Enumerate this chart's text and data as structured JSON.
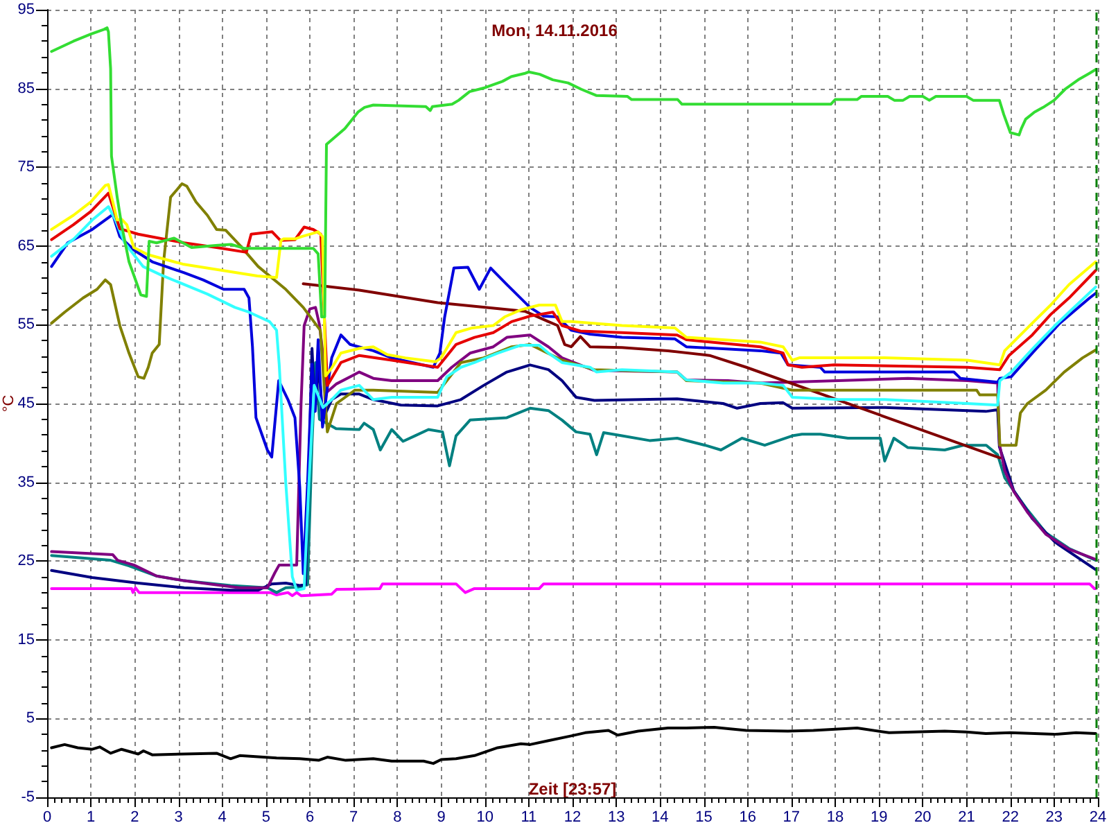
{
  "chart_data": {
    "type": "line",
    "title": "Mon, 14.11.2016",
    "xlabel": "Zeit [23:57]",
    "ylabel": "°C",
    "xlim": [
      0,
      24
    ],
    "ylim": [
      -5,
      95
    ],
    "xticks": [
      0,
      1,
      2,
      3,
      4,
      5,
      6,
      7,
      8,
      9,
      10,
      11,
      12,
      13,
      14,
      15,
      16,
      17,
      18,
      19,
      20,
      21,
      22,
      23,
      24,
      {
        "value": 0.1667,
        "label": null
      },
      {
        "value": 0.3333,
        "label": null
      },
      {
        "value": 0.5,
        "label": null
      },
      {
        "value": 0.6667,
        "label": null
      },
      {
        "value": 0.8333,
        "label": null
      },
      {
        "value": 1.1667,
        "label": null
      },
      {
        "value": 1.3333,
        "label": null
      },
      {
        "value": 1.5,
        "label": null
      },
      {
        "value": 1.6667,
        "label": null
      },
      {
        "value": 1.8333,
        "label": null
      },
      {
        "value": 2.1667,
        "label": null
      },
      {
        "value": 2.3333,
        "label": null
      },
      {
        "value": 2.5,
        "label": null
      },
      {
        "value": 2.6667,
        "label": null
      },
      {
        "value": 2.8333,
        "label": null
      },
      {
        "value": 3.1667,
        "label": null
      },
      {
        "value": 3.3333,
        "label": null
      },
      {
        "value": 3.5,
        "label": null
      },
      {
        "value": 3.6667,
        "label": null
      },
      {
        "value": 3.8333,
        "label": null
      },
      {
        "value": 4.1667,
        "label": null
      },
      {
        "value": 4.3333,
        "label": null
      },
      {
        "value": 4.5,
        "label": null
      },
      {
        "value": 4.6667,
        "label": null
      },
      {
        "value": 4.8333,
        "label": null
      },
      {
        "value": 5.1667,
        "label": null
      },
      {
        "value": 5.3333,
        "label": null
      },
      {
        "value": 5.5,
        "label": null
      },
      {
        "value": 5.6667,
        "label": null
      },
      {
        "value": 5.8333,
        "label": null
      },
      {
        "value": 6.1667,
        "label": null
      },
      {
        "value": 6.3333,
        "label": null
      },
      {
        "value": 6.5,
        "label": null
      },
      {
        "value": 6.6667,
        "label": null
      },
      {
        "value": 6.8333,
        "label": null
      },
      {
        "value": 7.1667,
        "label": null
      },
      {
        "value": 7.3333,
        "label": null
      },
      {
        "value": 7.5,
        "label": null
      },
      {
        "value": 7.6667,
        "label": null
      },
      {
        "value": 7.8333,
        "label": null
      },
      {
        "value": 8.1667,
        "label": null
      },
      {
        "value": 8.3333,
        "label": null
      },
      {
        "value": 8.5,
        "label": null
      },
      {
        "value": 8.6667,
        "label": null
      },
      {
        "value": 8.8333,
        "label": null
      },
      {
        "value": 9.1667,
        "label": null
      },
      {
        "value": 9.3333,
        "label": null
      },
      {
        "value": 9.5,
        "label": null
      },
      {
        "value": 9.6667,
        "label": null
      },
      {
        "value": 9.8333,
        "label": null
      },
      {
        "value": 10.1667,
        "label": null
      },
      {
        "value": 10.3333,
        "label": null
      },
      {
        "value": 10.5,
        "label": null
      },
      {
        "value": 10.6667,
        "label": null
      },
      {
        "value": 10.8333,
        "label": null
      },
      {
        "value": 11.1667,
        "label": null
      },
      {
        "value": 11.3333,
        "label": null
      },
      {
        "value": 11.5,
        "label": null
      },
      {
        "value": 11.6667,
        "label": null
      },
      {
        "value": 11.8333,
        "label": null
      },
      {
        "value": 12.1667,
        "label": null
      },
      {
        "value": 12.3333,
        "label": null
      },
      {
        "value": 12.5,
        "label": null
      },
      {
        "value": 12.6667,
        "label": null
      },
      {
        "value": 12.8333,
        "label": null
      },
      {
        "value": 13.1667,
        "label": null
      },
      {
        "value": 13.3333,
        "label": null
      },
      {
        "value": 13.5,
        "label": null
      },
      {
        "value": 13.6667,
        "label": null
      },
      {
        "value": 13.8333,
        "label": null
      },
      {
        "value": 14.1667,
        "label": null
      },
      {
        "value": 14.3333,
        "label": null
      },
      {
        "value": 14.5,
        "label": null
      },
      {
        "value": 14.6667,
        "label": null
      },
      {
        "value": 14.8333,
        "label": null
      },
      {
        "value": 15.1667,
        "label": null
      },
      {
        "value": 15.3333,
        "label": null
      },
      {
        "value": 15.5,
        "label": null
      },
      {
        "value": 15.6667,
        "label": null
      },
      {
        "value": 15.8333,
        "label": null
      },
      {
        "value": 16.1667,
        "label": null
      },
      {
        "value": 16.3333,
        "label": null
      },
      {
        "value": 16.5,
        "label": null
      },
      {
        "value": 16.6667,
        "label": null
      },
      {
        "value": 16.8333,
        "label": null
      },
      {
        "value": 17.1667,
        "label": null
      },
      {
        "value": 17.3333,
        "label": null
      },
      {
        "value": 17.5,
        "label": null
      },
      {
        "value": 17.6667,
        "label": null
      },
      {
        "value": 17.8333,
        "label": null
      },
      {
        "value": 18.1667,
        "label": null
      },
      {
        "value": 18.3333,
        "label": null
      },
      {
        "value": 18.5,
        "label": null
      },
      {
        "value": 18.6667,
        "label": null
      },
      {
        "value": 18.8333,
        "label": null
      },
      {
        "value": 19.1667,
        "label": null
      },
      {
        "value": 19.3333,
        "label": null
      },
      {
        "value": 19.5,
        "label": null
      },
      {
        "value": 19.6667,
        "label": null
      },
      {
        "value": 19.8333,
        "label": null
      },
      {
        "value": 20.1667,
        "label": null
      },
      {
        "value": 20.3333,
        "label": null
      },
      {
        "value": 20.5,
        "label": null
      },
      {
        "value": 20.6667,
        "label": null
      },
      {
        "value": 20.8333,
        "label": null
      },
      {
        "value": 21.1667,
        "label": null
      },
      {
        "value": 21.3333,
        "label": null
      },
      {
        "value": 21.5,
        "label": null
      },
      {
        "value": 21.6667,
        "label": null
      },
      {
        "value": 21.8333,
        "label": null
      },
      {
        "value": 22.1667,
        "label": null
      },
      {
        "value": 22.3333,
        "label": null
      },
      {
        "value": 22.5,
        "label": null
      },
      {
        "value": 22.6667,
        "label": null
      },
      {
        "value": 22.8333,
        "label": null
      },
      {
        "value": 23.1667,
        "label": null
      },
      {
        "value": 23.3333,
        "label": null
      },
      {
        "value": 23.5,
        "label": null
      },
      {
        "value": 23.6667,
        "label": null
      },
      {
        "value": 23.8333,
        "label": null
      }
    ],
    "yticks": [
      -5,
      5,
      15,
      25,
      35,
      45,
      55,
      65,
      75,
      85,
      95,
      {
        "value": -3,
        "label": null
      },
      {
        "value": -1,
        "label": null
      },
      {
        "value": 1,
        "label": null
      },
      {
        "value": 3,
        "label": null
      },
      {
        "value": 7,
        "label": null
      },
      {
        "value": 9,
        "label": null
      },
      {
        "value": 11,
        "label": null
      },
      {
        "value": 13,
        "label": null
      },
      {
        "value": 17,
        "label": null
      },
      {
        "value": 19,
        "label": null
      },
      {
        "value": 21,
        "label": null
      },
      {
        "value": 23,
        "label": null
      },
      {
        "value": 27,
        "label": null
      },
      {
        "value": 29,
        "label": null
      },
      {
        "value": 31,
        "label": null
      },
      {
        "value": 33,
        "label": null
      },
      {
        "value": 37,
        "label": null
      },
      {
        "value": 39,
        "label": null
      },
      {
        "value": 41,
        "label": null
      },
      {
        "value": 43,
        "label": null
      },
      {
        "value": 47,
        "label": null
      },
      {
        "value": 49,
        "label": null
      },
      {
        "value": 51,
        "label": null
      },
      {
        "value": 53,
        "label": null
      },
      {
        "value": 57,
        "label": null
      },
      {
        "value": 59,
        "label": null
      },
      {
        "value": 61,
        "label": null
      },
      {
        "value": 63,
        "label": null
      },
      {
        "value": 67,
        "label": null
      },
      {
        "value": 69,
        "label": null
      },
      {
        "value": 71,
        "label": null
      },
      {
        "value": 73,
        "label": null
      },
      {
        "value": 77,
        "label": null
      },
      {
        "value": 79,
        "label": null
      },
      {
        "value": 81,
        "label": null
      },
      {
        "value": 83,
        "label": null
      },
      {
        "value": 87,
        "label": null
      },
      {
        "value": 89,
        "label": null
      },
      {
        "value": 91,
        "label": null
      },
      {
        "value": 93,
        "label": null
      }
    ],
    "grid": true,
    "marker": "none",
    "line_style": "solid",
    "ref_lines": [
      {
        "axis": "x",
        "value": 23.95,
        "color": "#008000",
        "line_style": "dashed"
      }
    ],
    "series": [
      {
        "color": "#000000",
        "x": [
          0.1,
          0.4,
          0.7,
          1.03,
          1.2,
          1.45,
          1.7,
          2.08,
          2.2,
          2.4,
          3.13,
          3.87,
          4.19,
          4.4,
          5.24,
          5.77,
          6.2,
          6.4,
          6.82,
          7.45,
          7.87,
          8.6,
          8.82,
          9.0,
          9.34,
          9.76,
          10.29,
          10.82,
          11.03,
          11.45,
          11.97,
          12.29,
          12.82,
          13.03,
          13.5,
          14.18,
          14.6,
          15.24,
          15.6,
          15.97,
          16.92,
          17.5,
          18.5,
          19.23,
          20.5,
          21.0,
          21.44,
          22.0,
          23.0,
          23.5,
          23.95
        ],
        "values": [
          1.3,
          1.7,
          1.3,
          1.1,
          1.4,
          0.6,
          1.1,
          0.5,
          0.9,
          0.4,
          0.5,
          0.6,
          -0.1,
          0.3,
          0.0,
          -0.1,
          -0.3,
          0.1,
          -0.3,
          -0.1,
          -0.4,
          -0.4,
          -0.7,
          -0.2,
          -0.1,
          0.3,
          1.3,
          1.8,
          1.7,
          2.2,
          2.8,
          3.2,
          3.5,
          2.9,
          3.4,
          3.8,
          3.8,
          3.9,
          3.7,
          3.5,
          3.4,
          3.5,
          3.8,
          3.2,
          3.4,
          3.3,
          3.1,
          3.2,
          3.0,
          3.2,
          3.1
        ]
      },
      {
        "color": "#ff00ff",
        "x": [
          0.1,
          1.93,
          1.96,
          2.02,
          2.1,
          5.1,
          5.24,
          5.5,
          5.6,
          5.7,
          5.8,
          6.5,
          6.61,
          7.6,
          7.66,
          9.34,
          9.55,
          9.76,
          11.24,
          11.34,
          23.81,
          23.92,
          23.95
        ],
        "values": [
          21.5,
          21.5,
          21.0,
          21.6,
          21.0,
          21.0,
          20.7,
          21.0,
          20.6,
          21.0,
          20.6,
          20.8,
          21.4,
          21.5,
          22.1,
          22.1,
          21.0,
          21.5,
          21.5,
          22.1,
          22.1,
          21.5,
          21.5
        ]
      },
      {
        "color": "#008080",
        "x": [
          0.1,
          1.45,
          1.87,
          2.5,
          3.13,
          4.19,
          5.03,
          5.24,
          5.45,
          5.77,
          5.95,
          6.05,
          6.13,
          6.22,
          6.35,
          6.6,
          7.13,
          7.24,
          7.45,
          7.61,
          7.87,
          8.13,
          8.4,
          8.71,
          9.03,
          9.19,
          9.34,
          9.66,
          10.5,
          11.03,
          11.45,
          11.76,
          12.08,
          12.4,
          12.55,
          12.71,
          13.13,
          13.76,
          14.39,
          15.03,
          15.39,
          15.87,
          16.39,
          17.02,
          17.24,
          17.66,
          18.29,
          19.03,
          19.13,
          19.34,
          19.66,
          20.5,
          20.92,
          21.45,
          21.71,
          21.87,
          22.08,
          22.39,
          22.81,
          23.34,
          23.95
        ],
        "values": [
          25.7,
          25.1,
          24.4,
          23.1,
          22.5,
          21.9,
          21.6,
          21.0,
          21.6,
          21.7,
          22.0,
          40.0,
          50.2,
          43.0,
          42.6,
          41.8,
          41.7,
          42.5,
          41.7,
          39.1,
          41.7,
          40.2,
          40.9,
          41.7,
          41.4,
          37.1,
          40.9,
          42.9,
          43.2,
          44.4,
          44.1,
          42.9,
          41.4,
          41.1,
          38.5,
          41.3,
          40.9,
          40.3,
          40.6,
          39.7,
          39.1,
          40.6,
          39.7,
          40.9,
          41.1,
          41.1,
          40.6,
          40.6,
          37.7,
          40.6,
          39.4,
          39.1,
          39.7,
          39.7,
          38.5,
          35.6,
          33.9,
          31.5,
          28.6,
          26.6,
          25.1
        ]
      },
      {
        "color": "#000080",
        "x": [
          0.1,
          1.03,
          2.08,
          3.13,
          4.19,
          4.82,
          5.13,
          5.45,
          5.77,
          5.9,
          5.97,
          6.05,
          6.12,
          6.2,
          6.3,
          6.5,
          6.71,
          7.13,
          7.45,
          8.08,
          8.92,
          9.45,
          9.97,
          10.5,
          11.03,
          11.45,
          11.76,
          12.08,
          12.5,
          14.39,
          15.44,
          15.76,
          16.29,
          16.81,
          17.02,
          19.13,
          21.44,
          21.71,
          21.75,
          22.08,
          22.5,
          23.02,
          23.55,
          23.95
        ],
        "values": [
          23.8,
          22.9,
          22.2,
          21.6,
          21.3,
          21.3,
          22.1,
          22.2,
          21.9,
          22.0,
          35.0,
          52.0,
          44.0,
          50.0,
          43.0,
          45.5,
          46.2,
          46.2,
          45.5,
          44.8,
          44.7,
          45.5,
          47.3,
          49.0,
          49.9,
          49.3,
          47.9,
          45.8,
          45.4,
          45.6,
          45.0,
          44.4,
          45.0,
          45.1,
          44.4,
          44.5,
          44.0,
          44.2,
          39.5,
          33.9,
          30.4,
          27.4,
          25.4,
          23.9
        ]
      },
      {
        "color": "#800080",
        "x": [
          0.1,
          1.5,
          1.61,
          1.98,
          2.5,
          3.13,
          3.98,
          4.4,
          5.03,
          5.2,
          5.3,
          5.7,
          5.8,
          5.87,
          6.0,
          6.13,
          6.22,
          6.4,
          6.61,
          7.13,
          7.45,
          7.87,
          8.92,
          9.24,
          9.66,
          10.19,
          10.5,
          11.03,
          11.45,
          11.76,
          12.5,
          14.39,
          14.6,
          15.55,
          16.29,
          18.07,
          19.66,
          21.02,
          21.71,
          21.75,
          21.87,
          22.08,
          22.39,
          22.81,
          23.34,
          23.95
        ],
        "values": [
          26.2,
          25.8,
          25.1,
          24.5,
          23.1,
          22.5,
          21.9,
          21.6,
          21.6,
          23.5,
          24.5,
          24.5,
          45.0,
          54.9,
          57.0,
          57.2,
          55.0,
          46.5,
          47.5,
          49.0,
          48.2,
          47.9,
          47.9,
          49.6,
          51.4,
          52.2,
          53.4,
          53.7,
          52.2,
          50.8,
          49.2,
          49.0,
          48.0,
          47.9,
          47.6,
          47.9,
          48.2,
          47.9,
          47.6,
          39.9,
          36.5,
          33.8,
          31.2,
          28.4,
          26.5,
          25.2
        ]
      },
      {
        "color": "#800000",
        "x": [
          5.85,
          7.13,
          8.92,
          10.92,
          11.45,
          11.66,
          11.82,
          11.97,
          12.18,
          12.4,
          13.13,
          14.18,
          15.13,
          15.97,
          21.76
        ],
        "values": [
          60.2,
          59.4,
          57.8,
          56.7,
          55.4,
          54.9,
          52.5,
          52.2,
          53.5,
          52.2,
          52.1,
          51.7,
          51.1,
          49.6,
          38.1
        ]
      },
      {
        "color": "#808000",
        "x": [
          0.1,
          0.4,
          0.82,
          1.14,
          1.33,
          1.45,
          1.66,
          1.87,
          2.08,
          2.21,
          2.31,
          2.4,
          2.56,
          2.66,
          2.82,
          3.08,
          3.19,
          3.4,
          3.66,
          3.87,
          4.08,
          4.4,
          4.82,
          5.45,
          5.85,
          6.24,
          6.4,
          6.61,
          7.03,
          7.45,
          8.92,
          9.45,
          9.97,
          10.61,
          11.03,
          11.76,
          12.5,
          14.39,
          14.6,
          16.29,
          17.02,
          21.23,
          21.3,
          21.71,
          21.76,
          22.13,
          22.23,
          22.39,
          22.81,
          23.23,
          23.65,
          23.95
        ],
        "values": [
          55.2,
          56.6,
          58.4,
          59.5,
          60.7,
          60.1,
          54.9,
          51.4,
          48.4,
          48.2,
          49.6,
          51.4,
          52.5,
          63.0,
          71.2,
          72.9,
          72.6,
          70.6,
          68.9,
          67.1,
          67.0,
          65.1,
          62.4,
          59.5,
          57.2,
          54.3,
          41.4,
          45.0,
          46.7,
          46.7,
          46.4,
          50.2,
          50.8,
          52.2,
          52.5,
          50.5,
          49.3,
          49.0,
          47.9,
          47.6,
          46.7,
          46.7,
          46.1,
          46.1,
          39.7,
          39.7,
          43.8,
          45.0,
          46.7,
          49.0,
          50.8,
          51.8
        ]
      },
      {
        "color": "#0000dd",
        "x": [
          0.1,
          0.47,
          1.03,
          1.5,
          1.66,
          1.98,
          2.4,
          3.13,
          3.56,
          4.03,
          4.5,
          4.61,
          4.69,
          4.77,
          5.03,
          5.13,
          5.29,
          5.5,
          5.66,
          5.77,
          5.85,
          5.95,
          6.05,
          6.12,
          6.19,
          6.29,
          6.4,
          6.5,
          6.71,
          6.92,
          7.45,
          7.87,
          8.82,
          8.97,
          9.08,
          9.29,
          9.61,
          9.87,
          10.13,
          10.5,
          11.03,
          11.34,
          11.66,
          11.97,
          12.4,
          13.13,
          14.34,
          14.6,
          16.29,
          16.76,
          16.92,
          17.66,
          17.76,
          20.71,
          20.86,
          21.71,
          21.76,
          22.02,
          22.5,
          23.13,
          23.81,
          23.95
        ],
        "values": [
          62.4,
          65.4,
          67.1,
          69.0,
          66.2,
          64.5,
          63.0,
          61.6,
          60.7,
          59.5,
          59.5,
          58.4,
          52.2,
          43.2,
          39.1,
          38.2,
          47.9,
          45.5,
          43.2,
          34.4,
          23.4,
          35.0,
          50.0,
          44.0,
          53.1,
          42.0,
          47.0,
          50.8,
          53.7,
          52.5,
          51.7,
          50.8,
          49.6,
          51.4,
          56.0,
          62.2,
          62.3,
          59.5,
          62.2,
          60.1,
          57.2,
          56.1,
          56.0,
          54.3,
          53.8,
          53.4,
          53.2,
          52.2,
          51.7,
          51.4,
          49.9,
          49.6,
          49.0,
          49.0,
          48.2,
          47.7,
          48.2,
          48.4,
          51.4,
          55.2,
          58.4,
          59.0
        ]
      },
      {
        "color": "#33ffff",
        "x": [
          0.1,
          0.61,
          1.03,
          1.4,
          1.56,
          1.77,
          2.19,
          2.61,
          3.66,
          4.29,
          4.61,
          5.08,
          5.24,
          5.3,
          5.45,
          5.6,
          5.7,
          5.87,
          5.98,
          6.1,
          6.3,
          6.5,
          6.71,
          7.13,
          7.45,
          7.87,
          8.92,
          9.13,
          9.45,
          9.76,
          10.29,
          10.82,
          11.24,
          11.45,
          11.76,
          12.4,
          12.55,
          13.13,
          14.39,
          14.6,
          15.44,
          16.29,
          16.81,
          17.02,
          18.07,
          19.13,
          21.02,
          21.71,
          21.76,
          22.02,
          22.5,
          23.02,
          23.34,
          23.95
        ],
        "values": [
          63.7,
          65.9,
          68.3,
          70.0,
          68.3,
          65.4,
          62.4,
          61.3,
          58.9,
          57.2,
          56.6,
          55.4,
          54.3,
          50.0,
          35.0,
          23.0,
          21.3,
          21.5,
          35.0,
          47.3,
          44.5,
          45.5,
          46.7,
          47.3,
          45.5,
          45.8,
          45.8,
          48.4,
          49.6,
          50.2,
          51.4,
          52.4,
          52.4,
          51.4,
          50.2,
          49.6,
          49.0,
          49.3,
          49.0,
          48.0,
          47.6,
          47.6,
          47.3,
          45.8,
          45.5,
          45.5,
          45.0,
          44.8,
          47.9,
          49.0,
          51.9,
          54.9,
          56.6,
          59.8
        ]
      },
      {
        "color": "#e60000",
        "x": [
          0.1,
          0.6,
          1.0,
          1.4,
          1.66,
          2.08,
          3.13,
          3.87,
          4.55,
          4.66,
          5.14,
          5.33,
          5.66,
          5.87,
          6.08,
          6.25,
          6.4,
          6.71,
          7.13,
          7.87,
          8.92,
          9.34,
          9.76,
          10.19,
          10.61,
          11.03,
          11.55,
          11.76,
          12.18,
          13.13,
          14.39,
          14.6,
          16.29,
          16.81,
          16.92,
          17.24,
          17.97,
          21.02,
          21.76,
          21.97,
          22.5,
          22.92,
          23.34,
          23.95
        ],
        "values": [
          65.8,
          67.7,
          69.4,
          71.7,
          67.2,
          66.5,
          65.4,
          64.8,
          64.2,
          66.5,
          66.8,
          65.7,
          65.8,
          67.4,
          67.1,
          66.5,
          47.3,
          50.2,
          51.1,
          50.5,
          49.6,
          52.5,
          53.4,
          54.0,
          55.4,
          56.1,
          56.6,
          54.9,
          54.2,
          54.0,
          53.7,
          53.1,
          52.2,
          51.4,
          49.9,
          49.6,
          49.9,
          49.6,
          49.3,
          51.1,
          53.7,
          56.3,
          58.4,
          61.9
        ]
      },
      {
        "color": "#ffff00",
        "x": [
          0.1,
          0.6,
          1.0,
          1.33,
          1.4,
          1.5,
          1.6,
          1.7,
          1.82,
          1.98,
          2.3,
          3.1,
          4.0,
          4.8,
          5.24,
          5.34,
          5.4,
          5.66,
          5.82,
          6.19,
          6.29,
          6.36,
          6.5,
          6.71,
          7.13,
          7.45,
          7.77,
          8.18,
          8.87,
          9.0,
          9.34,
          9.71,
          10.19,
          10.45,
          10.82,
          11.24,
          11.61,
          11.76,
          11.97,
          13.13,
          14.34,
          14.6,
          16.29,
          16.81,
          17.02,
          17.18,
          19.13,
          21.02,
          21.76,
          21.87,
          22.5,
          22.92,
          23.34,
          23.95
        ],
        "values": [
          67.1,
          68.9,
          70.6,
          72.7,
          72.8,
          70.6,
          68.3,
          68.4,
          67.7,
          64.8,
          63.9,
          62.7,
          61.9,
          61.2,
          61.0,
          65.7,
          65.9,
          65.9,
          66.2,
          66.8,
          66.2,
          48.5,
          49.5,
          51.4,
          52.0,
          52.2,
          51.2,
          50.8,
          50.3,
          50.8,
          54.0,
          54.6,
          54.9,
          56.0,
          56.9,
          57.5,
          57.5,
          55.4,
          55.4,
          54.9,
          54.6,
          53.4,
          52.8,
          52.2,
          50.5,
          50.8,
          50.8,
          50.5,
          49.9,
          51.7,
          55.2,
          57.5,
          60.1,
          63.0
        ]
      },
      {
        "color": "#33dd33",
        "x": [
          0.1,
          0.6,
          1.0,
          1.3,
          1.37,
          1.4,
          1.45,
          1.47,
          1.6,
          1.7,
          1.87,
          2.14,
          2.27,
          2.33,
          2.5,
          2.9,
          3.3,
          3.9,
          4.2,
          4.5,
          6.08,
          6.19,
          6.27,
          6.34,
          6.38,
          6.8,
          7.1,
          7.25,
          7.45,
          8.65,
          8.75,
          8.8,
          9.25,
          9.4,
          9.65,
          10.0,
          10.4,
          10.6,
          10.9,
          11.0,
          11.25,
          11.55,
          11.9,
          12.2,
          12.55,
          13.25,
          13.35,
          14.4,
          14.5,
          17.9,
          18.0,
          18.5,
          18.6,
          19.2,
          19.35,
          19.55,
          19.7,
          20.0,
          20.15,
          20.3,
          21.0,
          21.15,
          21.75,
          21.85,
          22.0,
          22.2,
          22.25,
          22.35,
          22.55,
          22.75,
          23.0,
          23.25,
          23.55,
          23.8,
          23.95
        ],
        "values": [
          89.7,
          91.0,
          91.9,
          92.5,
          92.7,
          92.2,
          87.5,
          76.4,
          71.2,
          67.7,
          63.0,
          58.8,
          58.6,
          65.6,
          65.4,
          66.0,
          64.8,
          65.1,
          65.2,
          64.7,
          64.7,
          64.0,
          56.0,
          56.0,
          77.9,
          79.9,
          82.0,
          82.6,
          82.9,
          82.7,
          82.2,
          82.7,
          83.0,
          83.5,
          84.6,
          85.1,
          85.9,
          86.5,
          86.9,
          87.1,
          86.8,
          86.1,
          85.7,
          84.9,
          84.1,
          84.0,
          83.6,
          83.6,
          83.0,
          83.0,
          83.6,
          83.6,
          84.0,
          84.0,
          83.5,
          83.5,
          84.0,
          84.0,
          83.5,
          84.0,
          84.0,
          83.5,
          83.5,
          81.7,
          79.4,
          79.1,
          79.9,
          81.1,
          82.0,
          82.6,
          83.5,
          84.9,
          86.1,
          86.9,
          87.4
        ]
      }
    ]
  }
}
